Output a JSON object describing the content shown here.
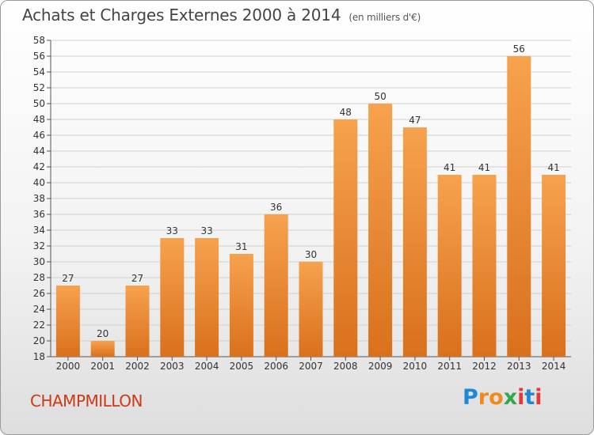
{
  "header": {
    "title": "Achats et Charges Externes 2000 à 2014",
    "subtitle": "(en milliers d'€)"
  },
  "footer": {
    "commune": "CHAMPMILLON",
    "logo": "Proxiti"
  },
  "colors": {
    "bar_top": "#f7a24e",
    "bar_bottom": "#d9701c",
    "grid": "#d0d0d0",
    "commune_text": "#cc3a16"
  },
  "chart_data": {
    "type": "bar",
    "categories": [
      "2000",
      "2001",
      "2002",
      "2003",
      "2004",
      "2005",
      "2006",
      "2007",
      "2008",
      "2009",
      "2010",
      "2011",
      "2012",
      "2013",
      "2014"
    ],
    "values": [
      27,
      20,
      27,
      33,
      33,
      31,
      36,
      30,
      48,
      50,
      47,
      41,
      41,
      56,
      41
    ],
    "title": "Achats et Charges Externes 2000 à 2014",
    "subtitle": "(en milliers d'€)",
    "xlabel": "",
    "ylabel": "",
    "ylim": [
      18,
      58
    ],
    "yticks": [
      18,
      20,
      22,
      24,
      26,
      28,
      30,
      32,
      34,
      36,
      38,
      40,
      42,
      44,
      46,
      48,
      50,
      52,
      54,
      56,
      58
    ],
    "grid": true,
    "data_labels": true
  }
}
